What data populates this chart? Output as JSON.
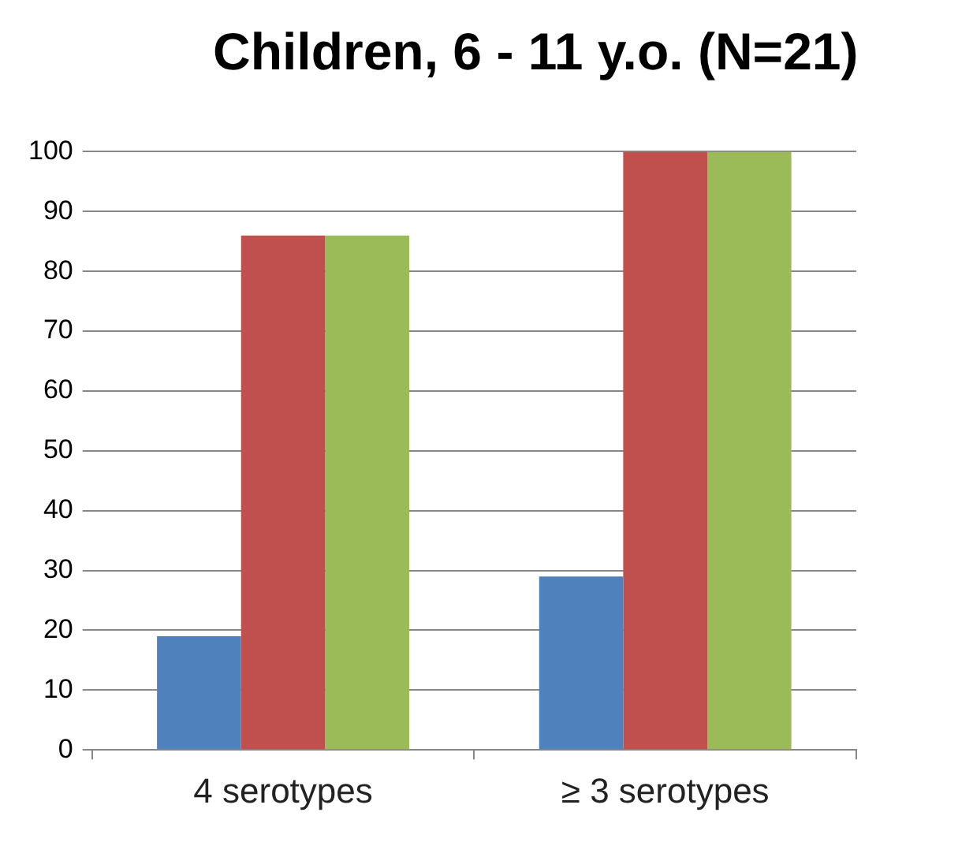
{
  "chart_data": {
    "type": "bar",
    "title": "Children, 6 - 11 y.o. (N=21)",
    "categories": [
      "4 serotypes",
      "≥ 3 serotypes"
    ],
    "series": [
      {
        "color": "#4f81bd",
        "values": [
          19,
          29
        ]
      },
      {
        "color": "#c0504d",
        "values": [
          86,
          100
        ]
      },
      {
        "color": "#9bbb59",
        "values": [
          86,
          100
        ]
      }
    ],
    "ylim": [
      0,
      100
    ],
    "yticks": [
      0,
      10,
      20,
      30,
      40,
      50,
      60,
      70,
      80,
      90,
      100
    ],
    "grid": "y",
    "legend": false
  }
}
